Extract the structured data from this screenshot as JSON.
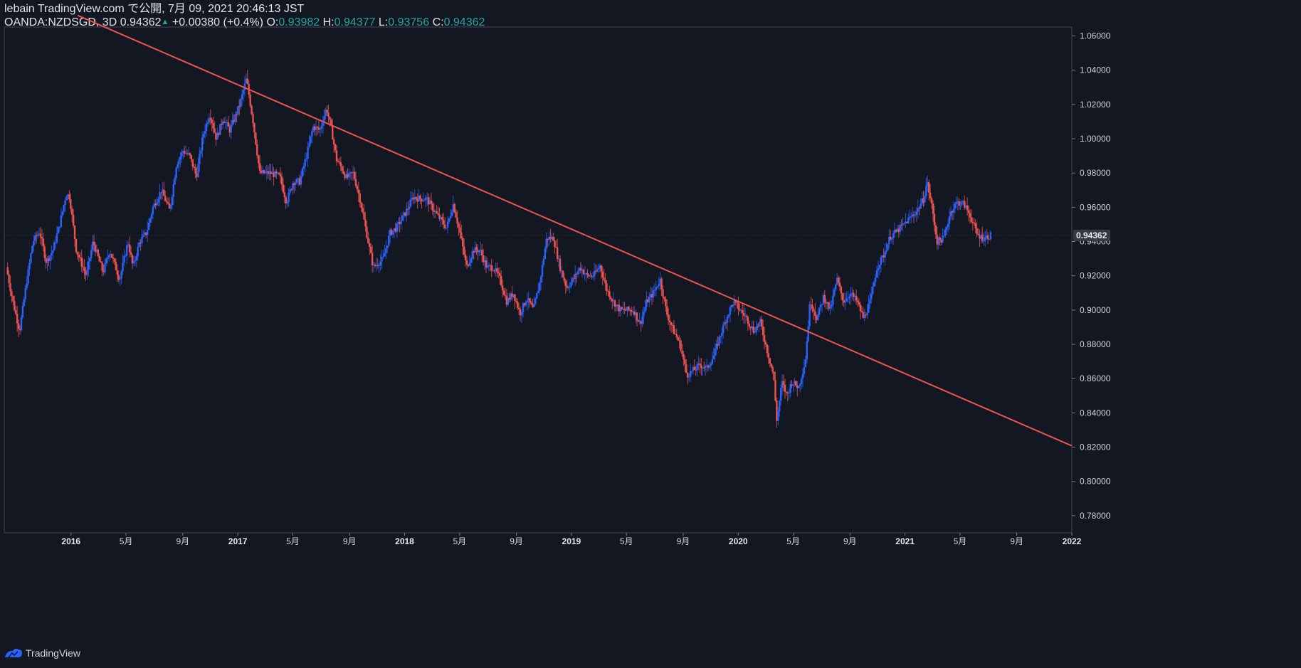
{
  "header": {
    "publisher": "lebain TradingView.com で公開, 7月 09, 2021 20:46:13 JST",
    "symbol": "OANDA:NZDSGD, 3D",
    "last": "0.94362",
    "change": "+0.00380 (+0.4%)",
    "o_label": "O:",
    "o_value": "0.93982",
    "h_label": "H:",
    "h_value": "0.94377",
    "l_label": "L:",
    "l_value": "0.93756",
    "c_label": "C:",
    "c_value": "0.94362"
  },
  "footer": {
    "brand": "TradingView",
    "logo_icon": "tradingview-logo-icon"
  },
  "colors": {
    "background": "#131722",
    "up": "#2962ff",
    "down": "#ef5350",
    "trendline": "#ef5350",
    "axis_text": "#d1d4dc",
    "price_tag": "#363a45"
  },
  "chart_data": {
    "type": "candlestick",
    "symbol": "OANDA:NZDSGD",
    "interval": "3D",
    "current_price": 0.94362,
    "price_label": "0.94362",
    "ylim": [
      0.77,
      1.0652
    ],
    "y_ticks": [
      "0.78000",
      "0.80000",
      "0.82000",
      "0.84000",
      "0.86000",
      "0.88000",
      "0.90000",
      "0.92000",
      "0.94000",
      "0.96000",
      "0.98000",
      "1.00000",
      "1.02000",
      "1.04000",
      "1.06000"
    ],
    "x_ticks": [
      "2016",
      "5月",
      "9月",
      "2017",
      "5月",
      "9月",
      "2018",
      "5月",
      "9月",
      "2019",
      "5月",
      "9月",
      "2020",
      "5月",
      "9月",
      "2021",
      "5月",
      "9月",
      "2022"
    ],
    "x_tick_bold": [
      true,
      false,
      false,
      true,
      false,
      false,
      true,
      false,
      false,
      true,
      false,
      false,
      true,
      false,
      false,
      true,
      false,
      false,
      true
    ],
    "xlim": [
      2015.6,
      2022.0
    ],
    "x_tick_dates": [
      2016.0,
      2016.33,
      2016.67,
      2017.0,
      2017.33,
      2017.67,
      2018.0,
      2018.33,
      2018.67,
      2019.0,
      2019.33,
      2019.67,
      2020.0,
      2020.33,
      2020.67,
      2021.0,
      2021.33,
      2021.67,
      2022.0
    ],
    "trendline": {
      "from": [
        2016.04,
        1.072
      ],
      "to": [
        2022.0,
        0.8208
      ]
    },
    "price_path": [
      [
        2015.62,
        0.925
      ],
      [
        2015.66,
        0.905
      ],
      [
        2015.7,
        0.888
      ],
      [
        2015.74,
        0.915
      ],
      [
        2015.78,
        0.94
      ],
      [
        2015.82,
        0.946
      ],
      [
        2015.86,
        0.928
      ],
      [
        2015.9,
        0.935
      ],
      [
        2015.94,
        0.95
      ],
      [
        2015.98,
        0.968
      ],
      [
        2016.0,
        0.966
      ],
      [
        2016.04,
        0.935
      ],
      [
        2016.1,
        0.92
      ],
      [
        2016.14,
        0.94
      ],
      [
        2016.2,
        0.922
      ],
      [
        2016.24,
        0.935
      ],
      [
        2016.3,
        0.918
      ],
      [
        2016.35,
        0.94
      ],
      [
        2016.38,
        0.925
      ],
      [
        2016.42,
        0.94
      ],
      [
        2016.46,
        0.945
      ],
      [
        2016.5,
        0.96
      ],
      [
        2016.55,
        0.97
      ],
      [
        2016.6,
        0.958
      ],
      [
        2016.64,
        0.985
      ],
      [
        2016.68,
        0.993
      ],
      [
        2016.72,
        0.99
      ],
      [
        2016.76,
        0.978
      ],
      [
        2016.8,
        1.002
      ],
      [
        2016.84,
        1.015
      ],
      [
        2016.88,
        1.0
      ],
      [
        2016.92,
        1.012
      ],
      [
        2016.96,
        1.005
      ],
      [
        2017.02,
        1.02
      ],
      [
        2017.06,
        1.035
      ],
      [
        2017.1,
        1.01
      ],
      [
        2017.14,
        0.98
      ],
      [
        2017.2,
        0.98
      ],
      [
        2017.26,
        0.978
      ],
      [
        2017.3,
        0.963
      ],
      [
        2017.34,
        0.975
      ],
      [
        2017.38,
        0.975
      ],
      [
        2017.42,
        0.99
      ],
      [
        2017.46,
        1.007
      ],
      [
        2017.5,
        1.005
      ],
      [
        2017.54,
        1.018
      ],
      [
        2017.57,
        1.005
      ],
      [
        2017.6,
        0.988
      ],
      [
        2017.63,
        0.983
      ],
      [
        2017.66,
        0.977
      ],
      [
        2017.7,
        0.98
      ],
      [
        2017.74,
        0.965
      ],
      [
        2017.78,
        0.945
      ],
      [
        2017.82,
        0.925
      ],
      [
        2017.88,
        0.93
      ],
      [
        2017.92,
        0.945
      ],
      [
        2017.96,
        0.948
      ],
      [
        2018.02,
        0.958
      ],
      [
        2018.06,
        0.966
      ],
      [
        2018.1,
        0.965
      ],
      [
        2018.14,
        0.965
      ],
      [
        2018.2,
        0.956
      ],
      [
        2018.26,
        0.948
      ],
      [
        2018.3,
        0.962
      ],
      [
        2018.34,
        0.945
      ],
      [
        2018.38,
        0.925
      ],
      [
        2018.42,
        0.935
      ],
      [
        2018.46,
        0.935
      ],
      [
        2018.5,
        0.925
      ],
      [
        2018.54,
        0.925
      ],
      [
        2018.58,
        0.918
      ],
      [
        2018.62,
        0.905
      ],
      [
        2018.66,
        0.91
      ],
      [
        2018.7,
        0.898
      ],
      [
        2018.74,
        0.907
      ],
      [
        2018.78,
        0.9
      ],
      [
        2018.82,
        0.917
      ],
      [
        2018.86,
        0.942
      ],
      [
        2018.9,
        0.942
      ],
      [
        2018.94,
        0.925
      ],
      [
        2018.98,
        0.913
      ],
      [
        2019.02,
        0.918
      ],
      [
        2019.06,
        0.925
      ],
      [
        2019.1,
        0.92
      ],
      [
        2019.14,
        0.92
      ],
      [
        2019.18,
        0.926
      ],
      [
        2019.22,
        0.912
      ],
      [
        2019.26,
        0.905
      ],
      [
        2019.3,
        0.9
      ],
      [
        2019.34,
        0.9
      ],
      [
        2019.38,
        0.9
      ],
      [
        2019.42,
        0.892
      ],
      [
        2019.46,
        0.905
      ],
      [
        2019.5,
        0.91
      ],
      [
        2019.54,
        0.918
      ],
      [
        2019.58,
        0.898
      ],
      [
        2019.62,
        0.888
      ],
      [
        2019.66,
        0.88
      ],
      [
        2019.7,
        0.862
      ],
      [
        2019.74,
        0.865
      ],
      [
        2019.78,
        0.868
      ],
      [
        2019.82,
        0.866
      ],
      [
        2019.86,
        0.873
      ],
      [
        2019.9,
        0.885
      ],
      [
        2019.94,
        0.896
      ],
      [
        2019.98,
        0.905
      ],
      [
        2020.02,
        0.9
      ],
      [
        2020.06,
        0.895
      ],
      [
        2020.1,
        0.888
      ],
      [
        2020.14,
        0.893
      ],
      [
        2020.18,
        0.877
      ],
      [
        2020.22,
        0.862
      ],
      [
        2020.24,
        0.835
      ],
      [
        2020.27,
        0.858
      ],
      [
        2020.3,
        0.85
      ],
      [
        2020.33,
        0.858
      ],
      [
        2020.37,
        0.855
      ],
      [
        2020.41,
        0.87
      ],
      [
        2020.44,
        0.906
      ],
      [
        2020.48,
        0.895
      ],
      [
        2020.52,
        0.908
      ],
      [
        2020.56,
        0.9
      ],
      [
        2020.6,
        0.918
      ],
      [
        2020.64,
        0.905
      ],
      [
        2020.68,
        0.91
      ],
      [
        2020.72,
        0.905
      ],
      [
        2020.76,
        0.895
      ],
      [
        2020.8,
        0.905
      ],
      [
        2020.84,
        0.925
      ],
      [
        2020.88,
        0.932
      ],
      [
        2020.92,
        0.943
      ],
      [
        2020.96,
        0.946
      ],
      [
        2021.0,
        0.95
      ],
      [
        2021.04,
        0.954
      ],
      [
        2021.08,
        0.958
      ],
      [
        2021.12,
        0.965
      ],
      [
        2021.14,
        0.975
      ],
      [
        2021.17,
        0.96
      ],
      [
        2021.2,
        0.94
      ],
      [
        2021.24,
        0.942
      ],
      [
        2021.28,
        0.957
      ],
      [
        2021.32,
        0.963
      ],
      [
        2021.36,
        0.962
      ],
      [
        2021.4,
        0.955
      ],
      [
        2021.44,
        0.944
      ],
      [
        2021.48,
        0.942
      ],
      [
        2021.52,
        0.9436
      ]
    ]
  }
}
